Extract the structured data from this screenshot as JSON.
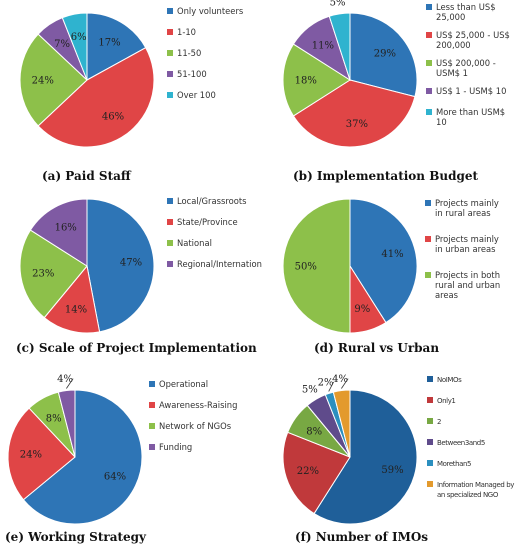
{
  "chart_data": [
    {
      "type": "pie",
      "title": "(a) Paid Staff",
      "categories": [
        "Only volunteers",
        "1-10",
        "11-50",
        "51-100",
        "Over 100"
      ],
      "values": [
        17,
        46,
        24,
        7,
        6
      ],
      "labels": [
        "17%",
        "46%",
        "24%",
        "7%",
        "6%"
      ],
      "colors": [
        "#2e75b6",
        "#e04546",
        "#8dc04a",
        "#7f5aa3",
        "#2fb3cf"
      ],
      "legend": "right"
    },
    {
      "type": "pie",
      "title": "(b) Implementation Budget",
      "categories": [
        "Less than US$ 25,000",
        "US$ 25,000 - US$ 200,000",
        "US$ 200,000 - USM$ 1",
        "US$ 1 - USM$ 10",
        "More than USM$ 10"
      ],
      "values": [
        29,
        37,
        18,
        11,
        5
      ],
      "labels": [
        "29%",
        "37%",
        "18%",
        "11%",
        "5%"
      ],
      "colors": [
        "#2e75b6",
        "#e04546",
        "#8dc04a",
        "#7f5aa3",
        "#2fb3cf"
      ],
      "legend": "right"
    },
    {
      "type": "pie",
      "title": "(c) Scale of Project Implementation",
      "categories": [
        "Local/Grassroots",
        "State/Province",
        "National",
        "Regional/Internation"
      ],
      "values": [
        47,
        14,
        23,
        16
      ],
      "labels": [
        "47%",
        "14%",
        "23%",
        "16%"
      ],
      "colors": [
        "#2e75b6",
        "#e04546",
        "#8dc04a",
        "#7f5aa3"
      ],
      "legend": "right"
    },
    {
      "type": "pie",
      "title": "(d) Rural vs Urban",
      "categories": [
        "Projects mainly in rural areas",
        "Projects mainly in urban areas",
        "Projects in both rural and urban areas"
      ],
      "values": [
        41,
        9,
        50
      ],
      "labels": [
        "41%",
        "9%",
        "50%"
      ],
      "colors": [
        "#2e75b6",
        "#e04546",
        "#8dc04a"
      ],
      "legend": "right"
    },
    {
      "type": "pie",
      "title": "(e) Working Strategy",
      "categories": [
        "Operational",
        "Awareness-Raising",
        "Network of NGOs",
        "Funding"
      ],
      "values": [
        64,
        24,
        8,
        4
      ],
      "labels": [
        "64%",
        "24%",
        "8%",
        "4%"
      ],
      "colors": [
        "#2e75b6",
        "#e04546",
        "#8dc04a",
        "#7f5aa3"
      ],
      "legend": "right"
    },
    {
      "type": "pie",
      "title": "(f) Number of IMOs",
      "categories": [
        "NoIMOs",
        "Only1",
        "2",
        "Between3and5",
        "Morethan5",
        "Information Managed by an specialized NGO"
      ],
      "values": [
        59,
        22,
        8,
        5,
        2,
        4
      ],
      "labels": [
        "59%",
        "22%",
        "8%",
        "5%",
        "2%",
        "4%"
      ],
      "colors": [
        "#1f5f99",
        "#c0393b",
        "#78a843",
        "#5f4b8b",
        "#2b8fbf",
        "#e39a2d"
      ],
      "legend": "right"
    }
  ]
}
